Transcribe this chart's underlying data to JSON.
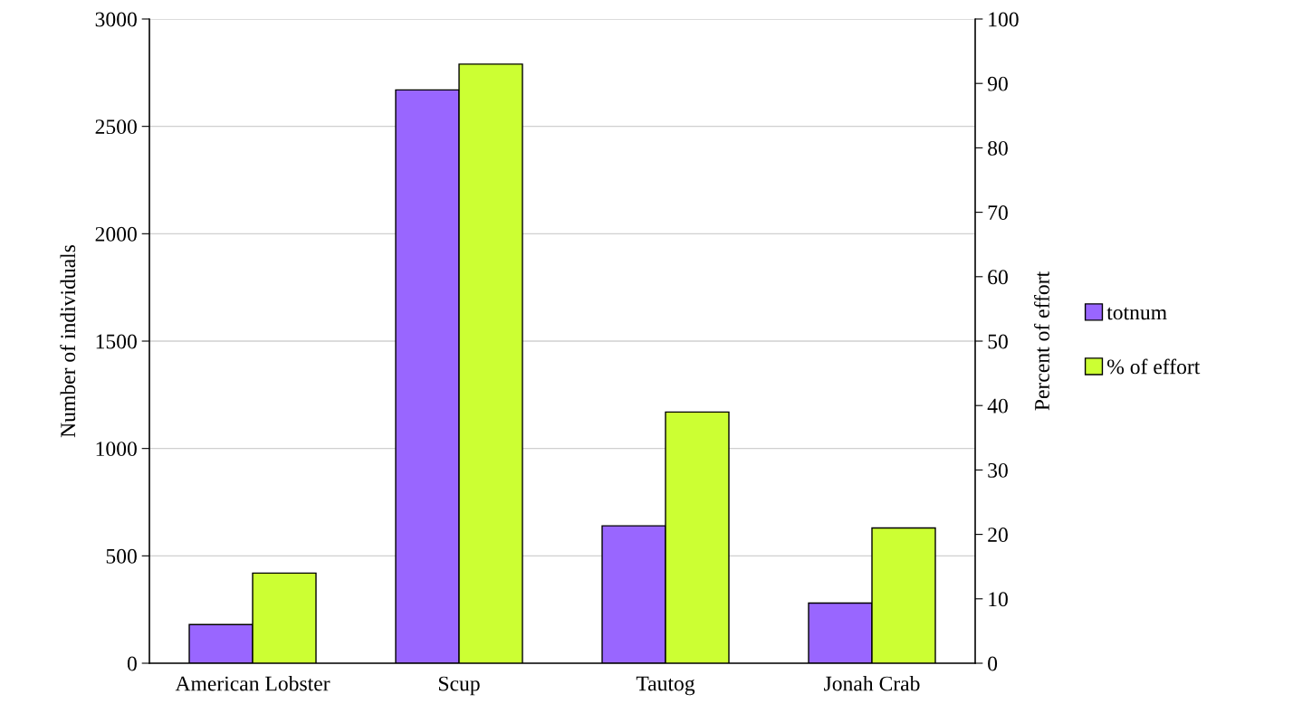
{
  "chart_data": {
    "type": "bar",
    "categories": [
      "American Lobster",
      "Scup",
      "Tautog",
      "Jonah Crab"
    ],
    "series": [
      {
        "name": "totnum",
        "color": "#9966ff",
        "values": [
          180,
          2670,
          640,
          280
        ]
      },
      {
        "name": "% of effort",
        "color": "#ccff33",
        "values": [
          14,
          93,
          39,
          21
        ],
        "axis": "y2"
      }
    ],
    "ylabel": "Number of individuals",
    "y2label": "Percent of effort",
    "ylim": [
      0,
      3000
    ],
    "yticks": [
      0,
      500,
      1000,
      1500,
      2000,
      2500,
      3000
    ],
    "y2lim": [
      0,
      100
    ],
    "y2ticks": [
      0,
      10,
      20,
      30,
      40,
      50,
      60,
      70,
      80,
      90,
      100
    ],
    "grid": "y",
    "legend": "right"
  }
}
